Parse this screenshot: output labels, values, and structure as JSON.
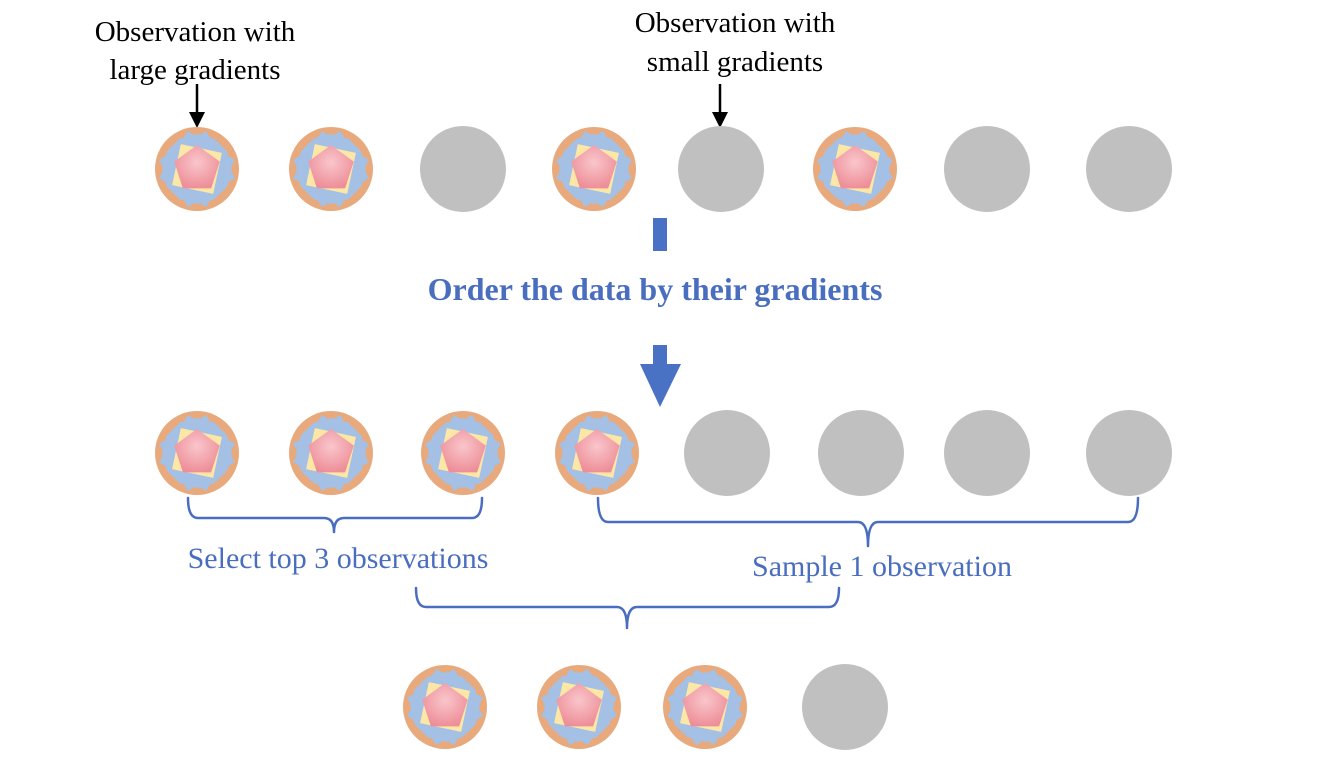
{
  "labels": {
    "large_gradients": [
      "Observation with",
      "large gradients"
    ],
    "small_gradients": [
      "Observation with",
      "small gradients"
    ],
    "order_step": "Order the data by their gradients",
    "select_top": "Select top 3 observations",
    "sample": "Sample 1 observation"
  },
  "rows": {
    "original": [
      "large",
      "large",
      "small",
      "large",
      "small",
      "large",
      "small",
      "small"
    ],
    "ordered": [
      "large",
      "large",
      "large",
      "large",
      "small",
      "small",
      "small",
      "small"
    ],
    "result": [
      "large",
      "large",
      "large",
      "small"
    ]
  },
  "colors": {
    "large_ring": "#E8A97C",
    "large_star": "#A4C0E4",
    "large_square": "#FDE7A6",
    "large_pentagon": "#EE8E98",
    "small_circle": "#C0C0C0",
    "accent": "#4A6EBF",
    "arrow_fill": "#4A72C4"
  }
}
